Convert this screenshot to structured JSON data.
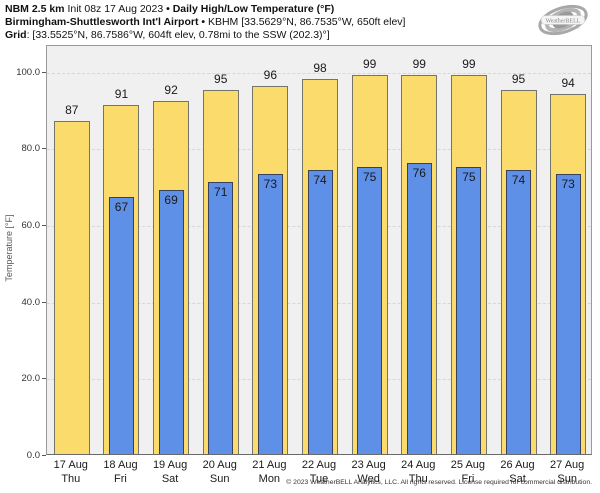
{
  "header": {
    "model": "NBM 2.5 km",
    "init": " Init 08z 17 Aug 2023 ",
    "separator": "• ",
    "product": "Daily High/Low Temperature (°F)",
    "station_name": "Birmingham-Shuttlesworth Int'l Airport",
    "station_separator": " • ",
    "station_details": "KBHM [33.5629°N, 86.7535°W, 650ft elev]",
    "grid_label": "Grid",
    "grid_details": ": [33.5525°N, 86.7586°W, 604ft elev, 0.78mi to the SSW (202.3)°]"
  },
  "logo": {
    "name": "weatherbell-logo",
    "text_main": "W",
    "text_full": "WeatherBELL",
    "color": "#9a9a9a"
  },
  "chart_data": {
    "type": "bar",
    "title": "Daily High/Low Temperature (°F)",
    "categories": [
      "17 Aug",
      "18 Aug",
      "19 Aug",
      "20 Aug",
      "21 Aug",
      "22 Aug",
      "23 Aug",
      "24 Aug",
      "25 Aug",
      "26 Aug",
      "27 Aug"
    ],
    "day_names": [
      "Thu",
      "Fri",
      "Sat",
      "Sun",
      "Mon",
      "Tue",
      "Wed",
      "Thu",
      "Fri",
      "Sat",
      "Sun"
    ],
    "series": [
      {
        "name": "High",
        "color": "#fbdb6b",
        "border": "#74746a",
        "values": [
          87,
          91,
          92,
          95,
          96,
          98,
          99,
          99,
          99,
          95,
          94
        ]
      },
      {
        "name": "Low",
        "color": "#5e90e8",
        "border": "#37415c",
        "values": [
          null,
          67,
          69,
          71,
          73,
          74,
          75,
          76,
          75,
          74,
          73
        ]
      }
    ],
    "xlabel": "",
    "ylabel": "Temperature [°F]",
    "yticks": [
      0,
      20,
      40,
      60,
      80,
      100
    ],
    "ytick_labels": [
      "0.0",
      "20.0",
      "40.0",
      "60.0",
      "80.0",
      "100.0"
    ],
    "ylim": [
      0,
      107
    ],
    "grid": "dashed-horizontal",
    "legend": "none"
  },
  "footer": {
    "copyright": "© 2023 WeatherBELL Analytics, LLC. All rights reserved. License required for commercial distribution."
  }
}
